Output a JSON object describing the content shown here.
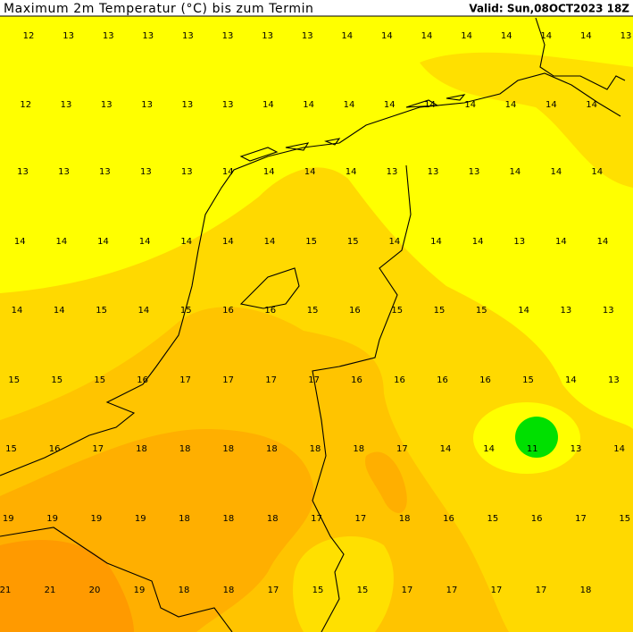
{
  "header": {
    "title": "Maximum 2m Temperatur (°C) bis zum Termin",
    "valid": "Valid: Sun,08OCT2023 18Z"
  },
  "grid": {
    "rows": [
      [
        "12",
        "13",
        "13",
        "13",
        "13",
        "13",
        "13",
        "13",
        "14",
        "14",
        "14",
        "14",
        "14",
        "14",
        "14",
        "13"
      ],
      [
        "12",
        "13",
        "13",
        "13",
        "13",
        "13",
        "14",
        "14",
        "14",
        "14",
        "14",
        "14",
        "14",
        "14",
        "14"
      ],
      [
        "13",
        "13",
        "13",
        "13",
        "13",
        "14",
        "14",
        "14",
        "14",
        "13",
        "13",
        "13",
        "14",
        "14",
        "14"
      ],
      [
        "14",
        "14",
        "14",
        "14",
        "14",
        "14",
        "14",
        "15",
        "15",
        "14",
        "14",
        "14",
        "13",
        "14",
        "14"
      ],
      [
        "14",
        "14",
        "15",
        "14",
        "15",
        "16",
        "16",
        "15",
        "16",
        "15",
        "15",
        "15",
        "14",
        "13",
        "13"
      ],
      [
        "15",
        "15",
        "15",
        "16",
        "17",
        "17",
        "17",
        "17",
        "16",
        "16",
        "16",
        "16",
        "15",
        "14",
        "13"
      ],
      [
        "15",
        "16",
        "17",
        "18",
        "18",
        "18",
        "18",
        "18",
        "18",
        "17",
        "14",
        "14",
        "11",
        "13",
        "14"
      ],
      [
        "19",
        "19",
        "19",
        "19",
        "18",
        "18",
        "18",
        "17",
        "17",
        "18",
        "16",
        "15",
        "16",
        "17",
        "15"
      ],
      [
        "21",
        "21",
        "20",
        "19",
        "18",
        "18",
        "17",
        "15",
        "15",
        "17",
        "17",
        "17",
        "17",
        "18"
      ]
    ]
  }
}
